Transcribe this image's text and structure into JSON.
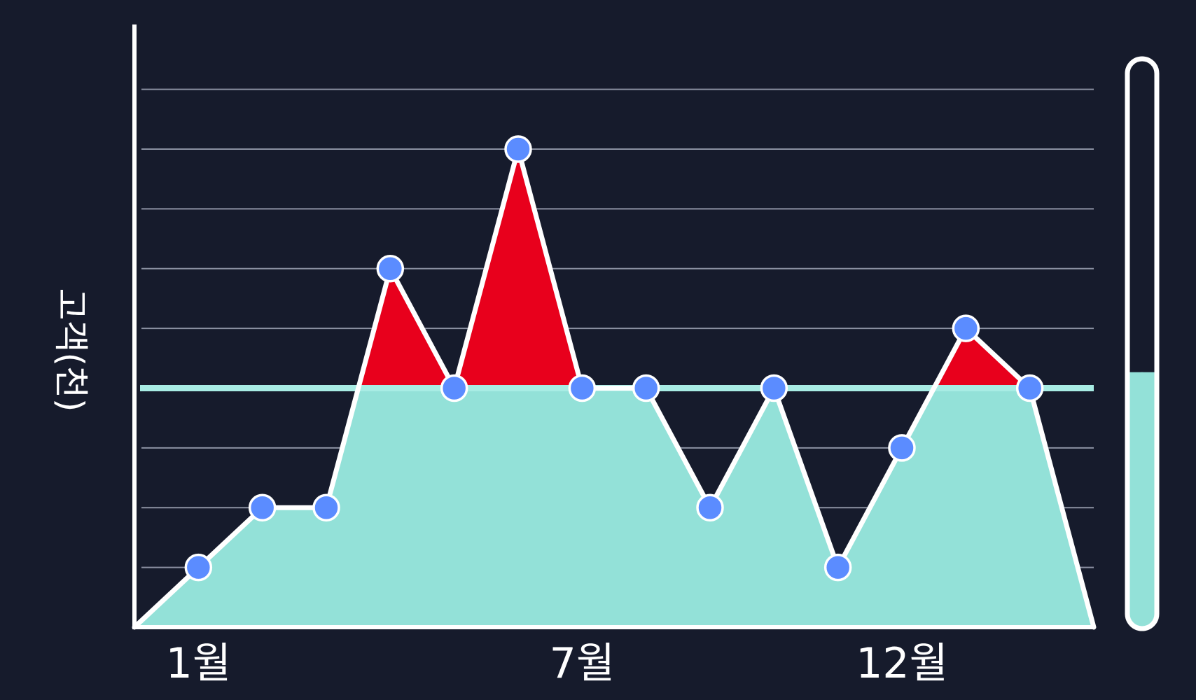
{
  "chart_data": {
    "type": "area",
    "ylabel": "고객(천)",
    "x_tick_labels": [
      {
        "label": "1월",
        "x": 1
      },
      {
        "label": "7월",
        "x": 7
      },
      {
        "label": "12월",
        "x": 12
      }
    ],
    "x": [
      0,
      1,
      2,
      3,
      4,
      5,
      6,
      7,
      8,
      9,
      10,
      11,
      12,
      13,
      14,
      15
    ],
    "values": [
      0,
      1,
      2,
      2,
      6,
      4,
      8,
      4,
      4,
      2,
      4,
      1,
      3,
      5,
      4,
      0
    ],
    "xlim": [
      0,
      15
    ],
    "ylim": [
      0,
      9.5
    ],
    "grid_lines": [
      1,
      2,
      3,
      4,
      5,
      6,
      7,
      8,
      9
    ],
    "threshold": 4,
    "grid": true,
    "gauge_fraction": 0.45,
    "colors": {
      "background": "#161b2c",
      "area_below_threshold": "#93e1d8",
      "area_above_threshold": "#e8001c",
      "line": "#ffffff",
      "points": "#5b8cff",
      "threshold_line": "#a8ece4",
      "grid": "#8b91a2",
      "gauge_fill": "#93e1d8"
    }
  }
}
